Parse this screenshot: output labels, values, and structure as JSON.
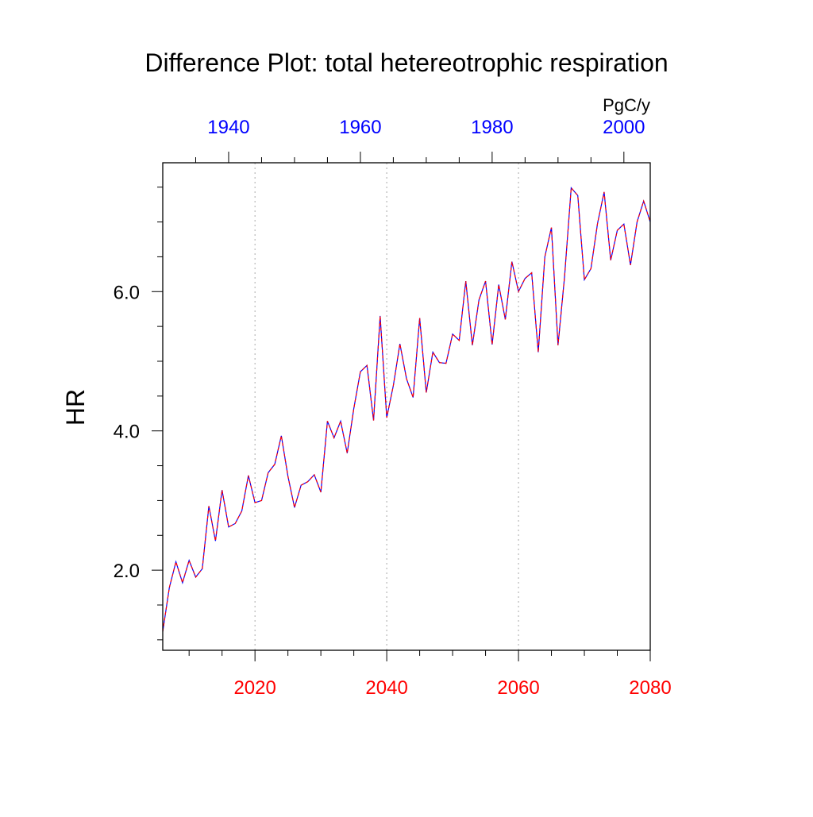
{
  "chart_data": {
    "type": "line",
    "title": "Difference Plot: total hetereotrophic respiration",
    "units": "PgC/y",
    "ylabel": "HR",
    "xlabel": "",
    "bottom_axis": {
      "range": [
        2006,
        2080
      ],
      "tick_labels": [
        "2020",
        "2040",
        "2060",
        "2080"
      ],
      "tick_values": [
        2020,
        2040,
        2060,
        2080
      ],
      "color": "#ff0000"
    },
    "top_axis": {
      "range": [
        1930,
        2004
      ],
      "tick_labels": [
        "1940",
        "1960",
        "1980",
        "2000"
      ],
      "tick_values": [
        1940,
        1960,
        1980,
        2000
      ],
      "color": "#0000ff"
    },
    "y_axis": {
      "range": [
        0.85,
        7.85
      ],
      "tick_labels": [
        "2.0",
        "4.0",
        "6.0"
      ],
      "tick_values": [
        2.0,
        4.0,
        6.0
      ]
    },
    "grid": "vertical dotted at bottom-axis major ticks",
    "line_colors": [
      "#0000ff",
      "#ff0000"
    ],
    "x": [
      2006,
      2007,
      2008,
      2009,
      2010,
      2011,
      2012,
      2013,
      2014,
      2015,
      2016,
      2017,
      2018,
      2019,
      2020,
      2021,
      2022,
      2023,
      2024,
      2025,
      2026,
      2027,
      2028,
      2029,
      2030,
      2031,
      2032,
      2033,
      2034,
      2035,
      2036,
      2037,
      2038,
      2039,
      2040,
      2041,
      2042,
      2043,
      2044,
      2045,
      2046,
      2047,
      2048,
      2049,
      2050,
      2051,
      2052,
      2053,
      2054,
      2055,
      2056,
      2057,
      2058,
      2059,
      2060,
      2061,
      2062,
      2063,
      2064,
      2065,
      2066,
      2067,
      2068,
      2069,
      2070,
      2071,
      2072,
      2073,
      2074,
      2075,
      2076,
      2077,
      2078,
      2079,
      2080
    ],
    "values": [
      1.12,
      1.75,
      2.12,
      1.82,
      2.14,
      1.9,
      2.02,
      2.92,
      2.42,
      3.15,
      2.62,
      2.67,
      2.85,
      3.36,
      2.97,
      3.0,
      3.4,
      3.52,
      3.93,
      3.35,
      2.9,
      3.22,
      3.27,
      3.37,
      3.12,
      4.14,
      3.9,
      4.14,
      3.68,
      4.32,
      4.85,
      4.94,
      4.15,
      5.65,
      4.19,
      4.65,
      5.25,
      4.75,
      4.48,
      5.62,
      4.55,
      5.13,
      4.98,
      4.97,
      5.39,
      5.3,
      6.15,
      5.23,
      5.88,
      6.15,
      5.24,
      6.1,
      5.6,
      6.43,
      6.0,
      6.19,
      6.27,
      5.13,
      6.5,
      6.92,
      5.23,
      6.22,
      7.49,
      7.38,
      6.17,
      6.33,
      6.98,
      7.43,
      6.45,
      6.88,
      6.97,
      6.38,
      7.0,
      7.3,
      7.0
    ]
  }
}
